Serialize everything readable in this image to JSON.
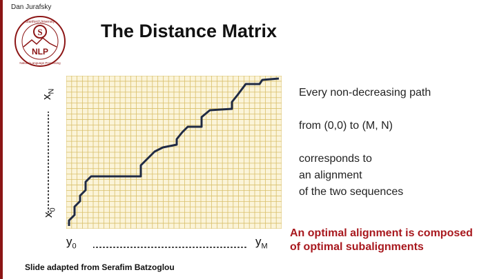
{
  "header": {
    "author": "Dan Jurafsky",
    "title": "The Distance Matrix"
  },
  "logo": {
    "top_text": "Stanford University",
    "letter": "S",
    "acronym": "NLP",
    "bottom_text": "Natural Language Processing"
  },
  "axes": {
    "vertical_start_base": "x",
    "vertical_start_sub": "0",
    "vertical_end_base": "x",
    "vertical_end_sub": "N",
    "horizontal_start_base": "y",
    "horizontal_start_sub": "0",
    "horizontal_end_base": "y",
    "horizontal_end_sub": "M"
  },
  "bullets": {
    "line1": "Every non-decreasing path",
    "line2": "from (0,0) to (M, N)",
    "line3a": "corresponds to",
    "line3b": "an alignment",
    "line3c": "of the two sequences"
  },
  "conclusion": {
    "line1": "An optimal alignment is composed",
    "line2": "of optimal subalignments"
  },
  "footer": {
    "credit": "Slide adapted from Serafim Batzoglou"
  },
  "colors": {
    "grid_fill": "#fbf4d9",
    "grid_line": "#d9bf6a",
    "path": "#1f2a44",
    "accent_red": "#a8181e",
    "brand": "#8c1515"
  },
  "grid": {
    "columns": 40,
    "rows": 28
  }
}
